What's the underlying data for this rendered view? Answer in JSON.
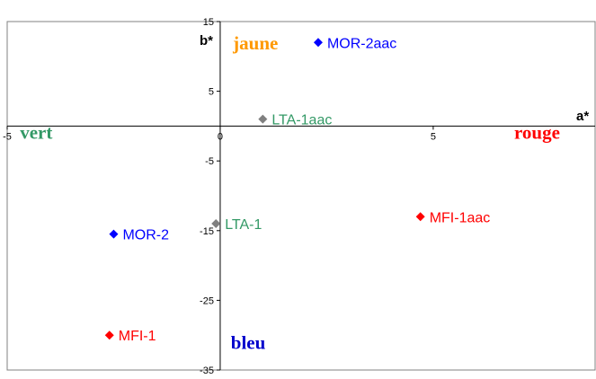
{
  "chart_data": {
    "type": "scatter",
    "title": "",
    "xlabel": "a*",
    "ylabel": "b*",
    "xlim": [
      -5,
      8.8
    ],
    "ylim": [
      -35,
      15
    ],
    "x_ticks": [
      -5,
      0,
      5
    ],
    "y_ticks": [
      15,
      5,
      -5,
      -15,
      -25,
      -35
    ],
    "x_tick_labels": [
      "-5",
      "0",
      "5"
    ],
    "y_tick_labels": [
      "15",
      "5",
      "-5",
      "-15",
      "-25",
      "-35"
    ],
    "grid": false,
    "legend": "none",
    "points": [
      {
        "label": "MOR-2aac",
        "x": 2.3,
        "y": 12,
        "color": "#0000ff"
      },
      {
        "label": "LTA-1aac",
        "x": 1.0,
        "y": 1,
        "color": "#808080",
        "label_color": "#339966"
      },
      {
        "label": "MFI-1aac",
        "x": 4.7,
        "y": -13,
        "color": "#ff0000"
      },
      {
        "label": "LTA-1",
        "x": -0.1,
        "y": -14,
        "color": "#808080",
        "label_color": "#339966"
      },
      {
        "label": "MOR-2",
        "x": -2.5,
        "y": -15.5,
        "color": "#0000ff"
      },
      {
        "label": "MFI-1",
        "x": -2.6,
        "y": -30,
        "color": "#ff0000"
      }
    ],
    "annotations": [
      {
        "text": "jaune",
        "x": 0.3,
        "y": 11,
        "color": "#ff9900"
      },
      {
        "text": "vert",
        "x": -4.7,
        "y": -1.8,
        "color": "#339966"
      },
      {
        "text": "rouge",
        "x": 6.9,
        "y": -1.8,
        "color": "#ff0000"
      },
      {
        "text": "bleu",
        "x": 0.25,
        "y": -32,
        "color": "#0000cc"
      }
    ]
  }
}
